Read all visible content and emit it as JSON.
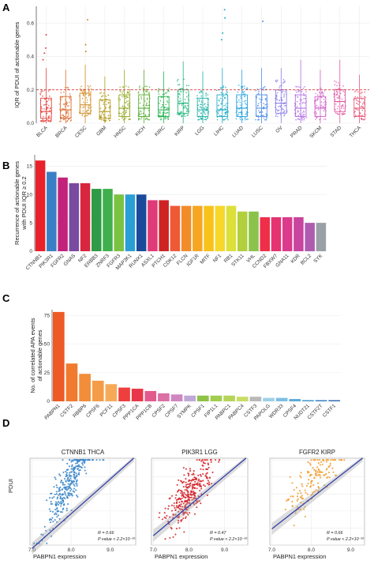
{
  "panels": {
    "a_letter": "A",
    "b_letter": "B",
    "c_letter": "C",
    "d_letter": "D"
  },
  "chart_data": [
    {
      "type": "box",
      "panel": "A",
      "ylabel": "IQR of PDUI of actionable genes",
      "ylim": [
        0,
        0.7
      ],
      "yticks": [
        0.0,
        0.2,
        0.4,
        0.6
      ],
      "threshold": 0.2,
      "grid": true,
      "categories": [
        "BLCA",
        "BRCA",
        "CESC",
        "GBM",
        "HNSC",
        "KICH",
        "KIRC",
        "KIRP",
        "LGG",
        "LIHC",
        "LUAD",
        "LUSC",
        "OV",
        "PRAD",
        "SKCM",
        "STAD",
        "THCA"
      ],
      "colors": [
        "#e8413c",
        "#dc6a2e",
        "#d08a1f",
        "#b49a1a",
        "#8fa61c",
        "#55ad2f",
        "#25b24e",
        "#1fb47b",
        "#1eb1a6",
        "#1fabc6",
        "#24a1df",
        "#4f8ee8",
        "#8a7de9",
        "#b06fe2",
        "#cf62c9",
        "#e05aa5",
        "#e65b7d"
      ],
      "quartiles": [
        {
          "min": 0.0,
          "q1": 0.03,
          "median": 0.07,
          "q3": 0.15,
          "max": 0.33,
          "outliers": [
            0.38,
            0.42,
            0.45,
            0.53
          ]
        },
        {
          "min": 0.0,
          "q1": 0.03,
          "median": 0.08,
          "q3": 0.16,
          "max": 0.32,
          "outliers": []
        },
        {
          "min": 0.0,
          "q1": 0.06,
          "median": 0.11,
          "q3": 0.18,
          "max": 0.35,
          "outliers": [
            0.43,
            0.47,
            0.62
          ]
        },
        {
          "min": 0.0,
          "q1": 0.03,
          "median": 0.07,
          "q3": 0.14,
          "max": 0.28,
          "outliers": []
        },
        {
          "min": 0.0,
          "q1": 0.04,
          "median": 0.09,
          "q3": 0.17,
          "max": 0.32,
          "outliers": []
        },
        {
          "min": 0.0,
          "q1": 0.04,
          "median": 0.09,
          "q3": 0.17,
          "max": 0.32,
          "outliers": []
        },
        {
          "min": 0.0,
          "q1": 0.04,
          "median": 0.08,
          "q3": 0.16,
          "max": 0.31,
          "outliers": []
        },
        {
          "min": 0.0,
          "q1": 0.06,
          "median": 0.12,
          "q3": 0.2,
          "max": 0.37,
          "outliers": []
        },
        {
          "min": 0.0,
          "q1": 0.04,
          "median": 0.08,
          "q3": 0.15,
          "max": 0.31,
          "outliers": []
        },
        {
          "min": 0.0,
          "q1": 0.04,
          "median": 0.08,
          "q3": 0.17,
          "max": 0.33,
          "outliers": [
            0.5,
            0.54,
            0.63,
            0.68
          ]
        },
        {
          "min": 0.0,
          "q1": 0.04,
          "median": 0.09,
          "q3": 0.17,
          "max": 0.32,
          "outliers": []
        },
        {
          "min": 0.0,
          "q1": 0.04,
          "median": 0.09,
          "q3": 0.17,
          "max": 0.33,
          "outliers": [
            0.61
          ]
        },
        {
          "min": 0.0,
          "q1": 0.06,
          "median": 0.12,
          "q3": 0.2,
          "max": 0.33,
          "outliers": []
        },
        {
          "min": 0.0,
          "q1": 0.04,
          "median": 0.09,
          "q3": 0.17,
          "max": 0.38,
          "outliers": []
        },
        {
          "min": 0.0,
          "q1": 0.04,
          "median": 0.09,
          "q3": 0.16,
          "max": 0.32,
          "outliers": []
        },
        {
          "min": 0.0,
          "q1": 0.07,
          "median": 0.13,
          "q3": 0.2,
          "max": 0.38,
          "outliers": []
        },
        {
          "min": 0.0,
          "q1": 0.04,
          "median": 0.09,
          "q3": 0.15,
          "max": 0.29,
          "outliers": []
        }
      ]
    },
    {
      "type": "bar",
      "panel": "B",
      "ylabel_line1": "Recurrence of actionable genes",
      "ylabel_line2": "with PDUI IQR ≥ 0.2",
      "ylim": [
        0,
        17
      ],
      "yticks": [
        0,
        5,
        10,
        15
      ],
      "grid": true,
      "categories": [
        "CTNNB1",
        "PIK3R1",
        "FGFR2",
        "GNAS",
        "NF2",
        "ERBB3",
        "ZNRF3",
        "FGFR3",
        "MAP3K1",
        "RUNX1",
        "ASXL1",
        "PTCH1",
        "CDK12",
        "FLCN",
        "IGF1R",
        "MITF",
        "NF1",
        "RB1",
        "STK11",
        "VHL",
        "CCND2",
        "FBXW7",
        "GNA11",
        "KDR",
        "BCL2",
        "SYK"
      ],
      "values": [
        16,
        14,
        13,
        12,
        12,
        11,
        11,
        10,
        10,
        10,
        9,
        9,
        8,
        8,
        8,
        8,
        8,
        8,
        7,
        7,
        6,
        6,
        6,
        6,
        5,
        5
      ],
      "colors": [
        "#e9212a",
        "#3a7fc4",
        "#c2227a",
        "#7a4aa0",
        "#d7263d",
        "#2f9b46",
        "#3fb04d",
        "#7bc242",
        "#2a9fd6",
        "#1c4a9b",
        "#e13a78",
        "#cf2323",
        "#ee5a36",
        "#f28c28",
        "#f6a623",
        "#f8c21b",
        "#f7d72a",
        "#dbe03a",
        "#b2cf3d",
        "#8bc34a",
        "#ef2f4a",
        "#e53370",
        "#dc3a8c",
        "#c8449e",
        "#b05bb0",
        "#9aa0a5"
      ]
    },
    {
      "type": "bar",
      "panel": "C",
      "ylabel_line1": "No. of correlated APA events",
      "ylabel_line2": "of actionable genes",
      "ylim": [
        0,
        80
      ],
      "yticks": [
        0,
        25,
        50,
        75
      ],
      "grid": true,
      "categories": [
        "PABPN1",
        "CSTF2",
        "RBBP6",
        "CPSF6",
        "PCF11",
        "CPSF3",
        "PPP1CA",
        "PPP1CB",
        "CPSF2",
        "CPSF7",
        "SYMPK",
        "CPSF1",
        "FIP1L1",
        "PABPC1",
        "PABPC4",
        "CSTF3",
        "PAPOLG",
        "WDR33",
        "CPSF4",
        "NUDT21",
        "CSTF2T",
        "CSTF1"
      ],
      "values": [
        78,
        33,
        24,
        18,
        15,
        12,
        11,
        9,
        7,
        6,
        5,
        5,
        5,
        5,
        4,
        4,
        3,
        3,
        2,
        1,
        1,
        1
      ],
      "colors": [
        "#ee5a26",
        "#f07a2e",
        "#f28d3a",
        "#f49c48",
        "#f6aa57",
        "#ee3e3e",
        "#e8364a",
        "#e25a8c",
        "#dc6fa6",
        "#cf86c1",
        "#c0a7d8",
        "#8fc246",
        "#a2cd4f",
        "#b6d45a",
        "#cadc64",
        "#b9b9b9",
        "#9dd0e8",
        "#7dbfe2",
        "#5aa9da",
        "#3b93cf",
        "#2f7cc0",
        "#2a68ae"
      ]
    },
    {
      "type": "scatter",
      "panel": "D",
      "xlabel": "PABPN1 expression",
      "ylabel": "PDUI",
      "subplots": [
        {
          "title": "CTNNB1 THCA",
          "color": "#3a86c8",
          "xlim": [
            6.95,
            9.65
          ],
          "xticks": [
            7.0,
            8.0,
            9.0
          ],
          "xtick_labels": [
            "7.0",
            "8.0",
            "9.0"
          ],
          "ylim": [
            0.0,
            1.02
          ],
          "yticks": [
            0.0,
            0.2,
            0.4,
            0.6,
            0.8,
            1.0
          ],
          "n_points": 320,
          "x_mean": 7.95,
          "x_sd": 0.28,
          "slope": 0.82,
          "intercept": -5.78,
          "R_text": "R = 0.66",
          "P_text": "P value < 2.2×10⁻¹⁶"
        },
        {
          "title": "PIK3R1  LGG",
          "color": "#d6262b",
          "xlim": [
            6.95,
            9.65
          ],
          "xticks": [
            7.0,
            8.0,
            9.0
          ],
          "xtick_labels": [
            "7.0",
            "8.0",
            "9.0"
          ],
          "ylim": [
            0.0,
            1.02
          ],
          "yticks": [
            0.0,
            0.2,
            0.4,
            0.6,
            0.8,
            1.0
          ],
          "n_points": 330,
          "x_mean": 8.0,
          "x_sd": 0.32,
          "slope": 0.48,
          "intercept": -3.25,
          "R_text": "R = 0.47",
          "P_text": "P value < 2.2×10⁻¹⁶"
        },
        {
          "title": "FGFR2 KIRP",
          "color": "#f19a2a",
          "xlim": [
            6.95,
            9.35
          ],
          "xticks": [
            7.0,
            8.0,
            9.0
          ],
          "xtick_labels": [
            "7.0",
            "8.0",
            "9.0"
          ],
          "ylim": [
            0.0,
            1.02
          ],
          "yticks": [
            0.0,
            0.2,
            0.4,
            0.6,
            0.8,
            1.0
          ],
          "n_points": 150,
          "x_mean": 8.05,
          "x_sd": 0.35,
          "slope": 0.52,
          "intercept": -3.45,
          "R_text": "R = 0.66",
          "P_text": "P value < 2.2×10⁻¹⁶"
        }
      ]
    }
  ]
}
